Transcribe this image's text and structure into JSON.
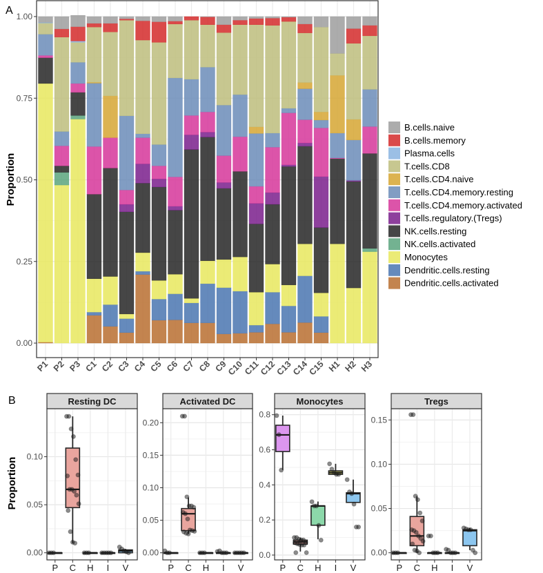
{
  "chart_data": [
    {
      "type": "bar",
      "stacked": true,
      "panel_label": "A",
      "ylabel": "Proportion",
      "ylim": [
        0,
        1
      ],
      "yticks": [
        "0.00",
        "0.25",
        "0.50",
        "0.75",
        "1.00"
      ],
      "grid": true,
      "legend_position": "right",
      "categories": [
        "P1",
        "P2",
        "P3",
        "C1",
        "C2",
        "C3",
        "C4",
        "C5",
        "C6",
        "C7",
        "C8",
        "C9",
        "C10",
        "C11",
        "C12",
        "C13",
        "C14",
        "C15",
        "H1",
        "H2",
        "H3"
      ],
      "legend_order": [
        "B.cells.naive",
        "B.cells.memory",
        "Plasma.cells",
        "T.cells.CD8",
        "T.cells.CD4.naive",
        "T.cells.CD4.memory.resting",
        "T.cells.CD4.memory.activated",
        "T.cells.regulatory.(Tregs)",
        "NK.cells.resting",
        "NK.cells.activated",
        "Monocytes",
        "Dendritic.cells.resting",
        "Dendritic.cells.activated"
      ],
      "series": [
        {
          "name": "Dendritic.cells.activated",
          "color": "#b86e30",
          "values": [
            0.003,
            0,
            0,
            0.085,
            0.051,
            0.032,
            0.21,
            0.07,
            0.071,
            0.062,
            0.062,
            0.028,
            0.03,
            0.033,
            0.059,
            0.033,
            0.063,
            0.032,
            0,
            0,
            0
          ]
        },
        {
          "name": "Dendritic.cells.resting",
          "color": "#4a76b0",
          "values": [
            0,
            0,
            0,
            0.01,
            0.067,
            0.043,
            0.01,
            0.065,
            0.08,
            0.061,
            0.12,
            0.142,
            0.129,
            0.022,
            0.097,
            0.081,
            0.143,
            0.05,
            0,
            0,
            0
          ]
        },
        {
          "name": "Monocytes",
          "color": "#e8e85e",
          "values": [
            0.792,
            0.484,
            0.686,
            0.102,
            0.086,
            0.014,
            0.057,
            0.057,
            0.06,
            0.014,
            0.07,
            0.086,
            0.105,
            0.101,
            0.086,
            0.064,
            0.098,
            0.072,
            0.304,
            0.169,
            0.28
          ]
        },
        {
          "name": "NK.cells.activated",
          "color": "#5aa57e",
          "values": [
            0,
            0.039,
            0.011,
            0,
            0,
            0,
            0,
            0,
            0,
            0,
            0,
            0,
            0,
            0,
            0,
            0,
            0,
            0,
            0,
            0,
            0.01
          ]
        },
        {
          "name": "NK.cells.resting",
          "color": "#262626",
          "values": [
            0.079,
            0.02,
            0.071,
            0.259,
            0.332,
            0.313,
            0.213,
            0.286,
            0.196,
            0.456,
            0.379,
            0.218,
            0.262,
            0.209,
            0.183,
            0.363,
            0.299,
            0.2,
            0.261,
            0.326,
            0.291
          ]
        },
        {
          "name": "T.cells.regulatory.(Tregs)",
          "color": "#7a1f8c",
          "values": [
            0,
            0,
            0,
            0,
            0,
            0.023,
            0.059,
            0.025,
            0.012,
            0.045,
            0.015,
            0.018,
            0,
            0.063,
            0.036,
            0.005,
            0.01,
            0.156,
            0,
            0.003,
            0
          ]
        },
        {
          "name": "T.cells.CD4.memory.activated",
          "color": "#d6369a",
          "values": [
            0.007,
            0.061,
            0.027,
            0.146,
            0.093,
            0.044,
            0.08,
            0.04,
            0.09,
            0.059,
            0.062,
            0.082,
            0.106,
            0.052,
            0.139,
            0.159,
            0.071,
            0.149,
            0.002,
            0,
            0.082
          ]
        },
        {
          "name": "T.cells.CD4.memory.resting",
          "color": "#6b8cb8",
          "values": [
            0.065,
            0.044,
            0.065,
            0.194,
            0,
            0.227,
            0.012,
            0.065,
            0.303,
            0.111,
            0.137,
            0.155,
            0.129,
            0.162,
            0.043,
            0.014,
            0.095,
            0.024,
            0.076,
            0.124,
            0.114
          ]
        },
        {
          "name": "T.cells.CD4.naive",
          "color": "#d6a632",
          "values": [
            0,
            0,
            0,
            0.003,
            0.128,
            0,
            0,
            0,
            0,
            0,
            0,
            0,
            0,
            0.02,
            0,
            0,
            0.019,
            0.025,
            0.177,
            0.063,
            0
          ]
        },
        {
          "name": "T.cells.CD8",
          "color": "#bdbd7d",
          "values": [
            0.034,
            0.289,
            0.061,
            0.169,
            0.196,
            0.293,
            0.287,
            0.313,
            0.165,
            0.181,
            0.13,
            0.222,
            0.214,
            0.313,
            0.33,
            0.266,
            0.152,
            0.26,
            0.067,
            0.233,
            0.164
          ]
        },
        {
          "name": "Plasma.cells",
          "color": "#8ab4e0",
          "values": [
            0.002,
            0,
            0.004,
            0,
            0,
            0,
            0,
            0,
            0,
            0,
            0,
            0,
            0,
            0,
            0,
            0,
            0,
            0,
            0,
            0,
            0
          ]
        },
        {
          "name": "B.cells.memory",
          "color": "#d42a2a",
          "values": [
            0,
            0.025,
            0.044,
            0.011,
            0.026,
            0.004,
            0.059,
            0.063,
            0.009,
            0.011,
            0.024,
            0.024,
            0.014,
            0.019,
            0.022,
            0.013,
            0.027,
            0,
            0,
            0.045,
            0.032
          ]
        },
        {
          "name": "B.cells.naive",
          "color": "#9e9e9e",
          "values": [
            0.018,
            0.038,
            0.035,
            0.021,
            0.021,
            0.007,
            0.013,
            0.016,
            0.014,
            0,
            0.001,
            0.025,
            0.011,
            0.006,
            0.005,
            0.002,
            0.023,
            0.032,
            0.113,
            0.037,
            0.027
          ]
        }
      ]
    },
    {
      "type": "box",
      "panel_label": "B",
      "ylabel": "Proportion",
      "groups": [
        "P",
        "C",
        "H",
        "I",
        "V"
      ],
      "group_colors": {
        "P": "#dc96ef",
        "C": "#e9a59e",
        "H": "#8cd8aa",
        "I": "#e3e070",
        "V": "#8cc6ef"
      },
      "facets": [
        {
          "title": "Resting DC",
          "ylim": [
            0,
            0.15
          ],
          "yticks": [
            0,
            0.05,
            0.1
          ],
          "ytick_labels": [
            "0.00",
            "0.05",
            "0.10"
          ],
          "boxes": {
            "P": [
              0,
              0,
              0,
              0,
              0
            ],
            "C": [
              0.01,
              0.047,
              0.066,
              0.109,
              0.142
            ],
            "H": [
              0,
              0,
              0,
              0,
              0
            ],
            "I": [
              0,
              0,
              0,
              0,
              0
            ],
            "V": [
              0,
              0,
              0.002,
              0.003,
              0.004
            ]
          },
          "points": {
            "P": [
              0,
              0,
              0
            ],
            "C": [
              0.142,
              0.142,
              0.129,
              0.121,
              0.097,
              0.081,
              0.08,
              0.066,
              0.066,
              0.064,
              0.06,
              0.051,
              0.044,
              0.022,
              0.011,
              0.01
            ],
            "H": [
              0,
              0,
              0
            ],
            "I": [
              0,
              0,
              0,
              0,
              0
            ],
            "V": [
              0.006,
              0.004,
              0.002,
              0.001,
              0
            ]
          }
        },
        {
          "title": "Activated DC",
          "ylim": [
            0,
            0.22
          ],
          "yticks": [
            0,
            0.05,
            0.1,
            0.15,
            0.2
          ],
          "ytick_labels": [
            "0.00",
            "0.05",
            "0.10",
            "0.15",
            "0.20"
          ],
          "boxes": {
            "P": [
              0,
              0,
              0,
              0,
              0.001
            ],
            "C": [
              0.029,
              0.034,
              0.06,
              0.068,
              0.085
            ],
            "H": [
              0,
              0,
              0,
              0,
              0
            ],
            "I": [
              0,
              0,
              0,
              0,
              0.001
            ],
            "V": [
              0,
              0,
              0,
              0,
              0
            ]
          },
          "points": {
            "P": [
              0.003,
              0,
              0
            ],
            "C": [
              0.21,
              0.21,
              0.086,
              0.072,
              0.072,
              0.07,
              0.062,
              0.06,
              0.052,
              0.035,
              0.034,
              0.033,
              0.032,
              0.03,
              0.029
            ],
            "H": [
              0,
              0,
              0
            ],
            "I": [
              0.002,
              0.003,
              0,
              0,
              0
            ],
            "V": [
              0,
              0,
              0,
              0,
              0
            ]
          }
        },
        {
          "title": "Monocytes",
          "ylim": [
            0,
            0.8
          ],
          "yticks": [
            0,
            0.2,
            0.4,
            0.6,
            0.8
          ],
          "ytick_labels": [
            "0.0",
            "0.2",
            "0.4",
            "0.6",
            "0.8"
          ],
          "boxes": {
            "P": [
              0.485,
              0.59,
              0.685,
              0.74,
              0.795
            ],
            "C": [
              0.02,
              0.062,
              0.075,
              0.085,
              0.1
            ],
            "H": [
              0.09,
              0.17,
              0.28,
              0.28,
              0.305
            ],
            "I": [
              0.46,
              0.46,
              0.47,
              0.48,
              0.52
            ],
            "V": [
              0.3,
              0.3,
              0.35,
              0.355,
              0.43
            ]
          },
          "points": {
            "P": [
              0.795,
              0.686,
              0.484
            ],
            "C": [
              0.1,
              0.1,
              0.09,
              0.086,
              0.086,
              0.072,
              0.07,
              0.064,
              0.06,
              0.057,
              0.057,
              0.014,
              0.014
            ],
            "H": [
              0.304,
              0.28,
              0.28,
              0.169,
              0.085
            ],
            "I": [
              0.52,
              0.49,
              0.47,
              0.46,
              0.46
            ],
            "V": [
              0.43,
              0.36,
              0.35,
              0.29,
              0.16,
              0.16
            ]
          }
        },
        {
          "title": "Tregs",
          "ylim": [
            0,
            0.16
          ],
          "yticks": [
            0,
            0.05,
            0.1,
            0.15
          ],
          "ytick_labels": [
            "0.00",
            "0.05",
            "0.10",
            "0.15"
          ],
          "boxes": {
            "P": [
              0,
              0,
              0,
              0,
              0
            ],
            "C": [
              0,
              0.008,
              0.019,
              0.041,
              0.064
            ],
            "H": [
              0,
              0,
              0,
              0,
              0
            ],
            "I": [
              0,
              0,
              0,
              0,
              0
            ],
            "V": [
              0.003,
              0.008,
              0.025,
              0.026,
              0.028
            ]
          },
          "points": {
            "P": [
              0,
              0,
              0
            ],
            "C": [
              0.156,
              0.156,
              0.064,
              0.06,
              0.045,
              0.036,
              0.026,
              0.025,
              0.023,
              0.019,
              0.016,
              0.013,
              0.01,
              0.003,
              0.002,
              0
            ],
            "H": [
              0.019,
              0.019,
              0,
              0,
              0
            ],
            "I": [
              0.004,
              0.003,
              0,
              0,
              0
            ],
            "V": [
              0.028,
              0.027,
              0.026,
              0.026,
              0.003,
              0
            ]
          }
        }
      ]
    }
  ]
}
